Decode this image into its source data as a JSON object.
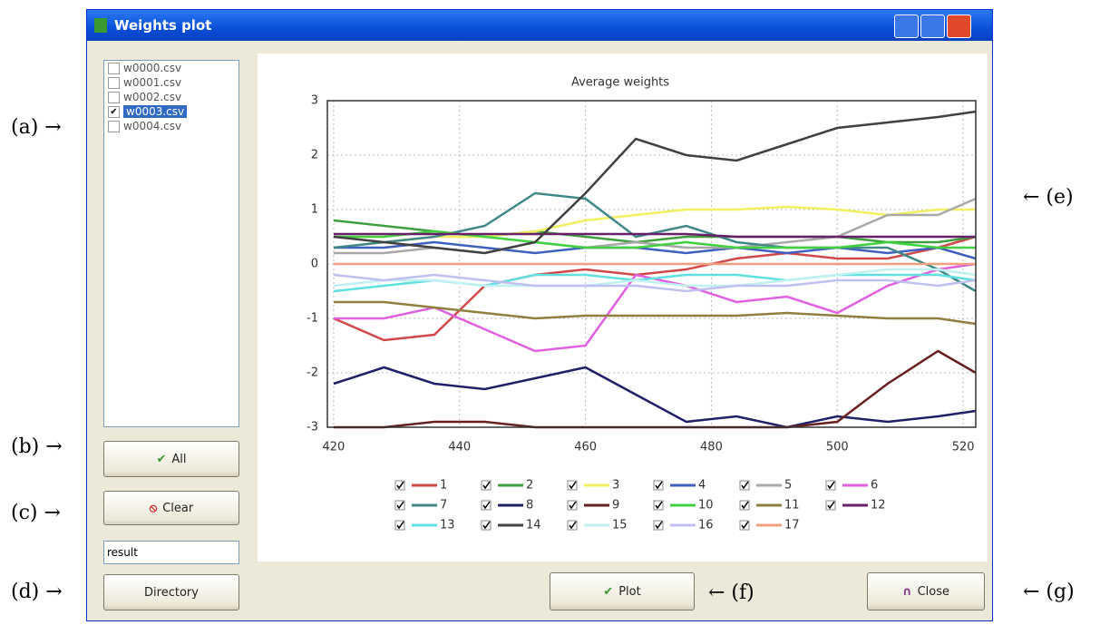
{
  "window": {
    "title": "Weights plot"
  },
  "files": [
    {
      "name": "w0000.csv",
      "checked": false,
      "selected": false
    },
    {
      "name": "w0001.csv",
      "checked": false,
      "selected": false
    },
    {
      "name": "w0002.csv",
      "checked": false,
      "selected": false
    },
    {
      "name": "w0003.csv",
      "checked": true,
      "selected": true
    },
    {
      "name": "w0004.csv",
      "checked": false,
      "selected": false
    }
  ],
  "buttons": {
    "all": "All",
    "clear": "Clear",
    "directory": "Directory",
    "plot": "Plot",
    "close": "Close"
  },
  "directory_input": "result",
  "annotations": {
    "a": "(a) →",
    "b": "(b) →",
    "c": "(c) →",
    "d": "(d) →",
    "e": "← (e)",
    "f": "← (f)",
    "g": "← (g)"
  },
  "chart_data": {
    "type": "line",
    "title": "Average weights",
    "x": [
      420,
      428,
      436,
      444,
      452,
      460,
      468,
      476,
      484,
      492,
      500,
      508,
      516,
      522
    ],
    "xlim": [
      419,
      522
    ],
    "xticks": [
      420,
      440,
      460,
      480,
      500,
      520
    ],
    "ylim": [
      -3,
      3
    ],
    "yticks": [
      -3,
      -2,
      -1,
      0,
      1,
      2,
      3
    ],
    "grid": true,
    "series": [
      {
        "name": "1",
        "color": "#d04848",
        "values": [
          -1.0,
          -1.4,
          -1.3,
          -0.4,
          -0.2,
          -0.1,
          -0.2,
          -0.1,
          0.1,
          0.2,
          0.1,
          0.1,
          0.3,
          0.5
        ]
      },
      {
        "name": "2",
        "color": "#40a040",
        "values": [
          0.8,
          0.7,
          0.6,
          0.5,
          0.6,
          0.5,
          0.4,
          0.5,
          0.5,
          0.5,
          0.5,
          0.4,
          0.4,
          0.5
        ]
      },
      {
        "name": "3",
        "color": "#f0f060",
        "values": [
          0.3,
          0.4,
          0.5,
          0.5,
          0.6,
          0.8,
          0.9,
          1.0,
          1.0,
          1.05,
          1.0,
          0.9,
          1.0,
          1.0
        ]
      },
      {
        "name": "4",
        "color": "#4060c0",
        "values": [
          0.3,
          0.3,
          0.4,
          0.3,
          0.2,
          0.3,
          0.3,
          0.2,
          0.3,
          0.2,
          0.3,
          0.2,
          0.3,
          0.1
        ]
      },
      {
        "name": "5",
        "color": "#a8a8a8",
        "values": [
          0.2,
          0.2,
          0.3,
          0.2,
          0.4,
          0.3,
          0.4,
          0.3,
          0.3,
          0.4,
          0.5,
          0.9,
          0.9,
          1.2
        ]
      },
      {
        "name": "6",
        "color": "#e060e0",
        "values": [
          -1.0,
          -1.0,
          -0.8,
          -1.2,
          -1.6,
          -1.5,
          -0.2,
          -0.4,
          -0.7,
          -0.6,
          -0.9,
          -0.4,
          -0.1,
          0.0
        ]
      },
      {
        "name": "7",
        "color": "#408888",
        "values": [
          0.3,
          0.4,
          0.5,
          0.7,
          1.3,
          1.2,
          0.5,
          0.7,
          0.4,
          0.3,
          0.3,
          0.3,
          -0.1,
          -0.5
        ]
      },
      {
        "name": "8",
        "color": "#202068",
        "values": [
          -2.2,
          -1.9,
          -2.2,
          -2.3,
          -2.1,
          -1.9,
          -2.4,
          -2.9,
          -2.8,
          -3.0,
          -2.8,
          -2.9,
          -2.8,
          -2.7
        ]
      },
      {
        "name": "9",
        "color": "#682020",
        "values": [
          -3.0,
          -3.0,
          -2.9,
          -2.9,
          -3.0,
          -3.0,
          -3.0,
          -3.0,
          -3.0,
          -3.0,
          -2.9,
          -2.2,
          -1.6,
          -2.0
        ]
      },
      {
        "name": "10",
        "color": "#40d040",
        "values": [
          0.5,
          0.5,
          0.6,
          0.5,
          0.4,
          0.3,
          0.3,
          0.4,
          0.3,
          0.3,
          0.3,
          0.4,
          0.3,
          0.3
        ]
      },
      {
        "name": "11",
        "color": "#908040",
        "values": [
          -0.7,
          -0.7,
          -0.8,
          -0.9,
          -1.0,
          -0.95,
          -0.95,
          -0.95,
          -0.95,
          -0.9,
          -0.95,
          -1.0,
          -1.0,
          -1.1
        ]
      },
      {
        "name": "12",
        "color": "#682068",
        "values": [
          0.55,
          0.55,
          0.55,
          0.55,
          0.55,
          0.55,
          0.55,
          0.55,
          0.5,
          0.5,
          0.5,
          0.5,
          0.5,
          0.5
        ]
      },
      {
        "name": "13",
        "color": "#60e0e0",
        "values": [
          -0.5,
          -0.4,
          -0.3,
          -0.4,
          -0.2,
          -0.2,
          -0.3,
          -0.2,
          -0.2,
          -0.3,
          -0.2,
          -0.2,
          -0.2,
          -0.3
        ]
      },
      {
        "name": "14",
        "color": "#404040",
        "values": [
          0.5,
          0.4,
          0.3,
          0.2,
          0.4,
          1.3,
          2.3,
          2.0,
          1.9,
          2.2,
          2.5,
          2.6,
          2.7,
          2.8
        ]
      },
      {
        "name": "15",
        "color": "#c0f0f0",
        "values": [
          -0.4,
          -0.3,
          -0.3,
          -0.4,
          -0.4,
          -0.4,
          -0.3,
          -0.4,
          -0.4,
          -0.3,
          -0.2,
          -0.1,
          -0.1,
          -0.2
        ]
      },
      {
        "name": "16",
        "color": "#c0c0f0",
        "values": [
          -0.2,
          -0.3,
          -0.2,
          -0.3,
          -0.4,
          -0.4,
          -0.4,
          -0.5,
          -0.4,
          -0.4,
          -0.3,
          -0.3,
          -0.4,
          -0.3
        ]
      },
      {
        "name": "17",
        "color": "#f0a080",
        "values": [
          0.0,
          0.0,
          0.0,
          0.0,
          0.0,
          0.0,
          0.0,
          0.0,
          0.0,
          0.0,
          0.0,
          0.0,
          0.0,
          0.0
        ]
      }
    ]
  }
}
